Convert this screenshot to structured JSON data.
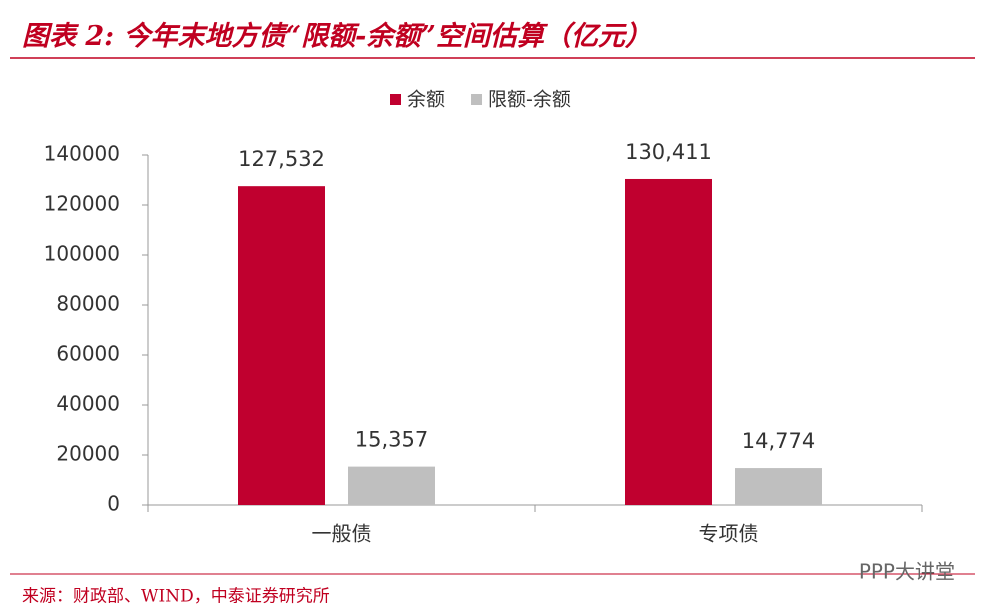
{
  "chart_data": {
    "type": "bar",
    "title": "图表 2: 今年末地方债“限额-余额”空间估算（亿元）",
    "source": "来源：财政部、WIND，中泰证券研究所",
    "watermark": "PPP大讲堂",
    "categories": [
      "一般债",
      "专项债"
    ],
    "series": [
      {
        "name": "余额",
        "color": "#c0002f",
        "values": [
          127532,
          130411
        ],
        "value_labels": [
          "127,532",
          "130,411"
        ]
      },
      {
        "name": "限额-余额",
        "color": "#bfbfbf",
        "values": [
          15357,
          14774
        ],
        "value_labels": [
          "15,357",
          "14,774"
        ]
      }
    ],
    "ylim": [
      0,
      140000
    ],
    "yticks": [
      0,
      20000,
      40000,
      60000,
      80000,
      100000,
      120000,
      140000
    ],
    "grid": false,
    "legend": "top"
  }
}
